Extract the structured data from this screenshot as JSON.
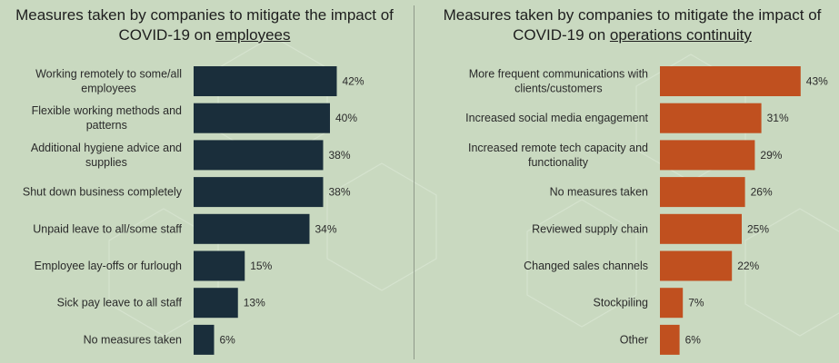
{
  "colors": {
    "background": "#c9d9c0",
    "left_bar": "#1a2e3b",
    "right_bar": "#c0501f",
    "text": "#2a2a2a"
  },
  "chart_data": [
    {
      "type": "bar",
      "orientation": "horizontal",
      "title": "Measures taken by companies to mitigate the impact of COVID-19 on employees",
      "title_line1": "Measures taken by companies to mitigate the impact of",
      "title_line2_prefix": "COVID-19 on ",
      "title_line2_underlined": "employees",
      "categories": [
        "Working remotely to some/all employees",
        "Flexible working methods and patterns",
        "Additional hygiene advice and supplies",
        "Shut down business completely",
        "Unpaid leave to all/some staff",
        "Employee lay-offs or furlough",
        "Sick pay leave to all staff",
        "No measures taken"
      ],
      "category_lines": [
        [
          "Working remotely to some/all",
          "employees"
        ],
        [
          "Flexible working methods and",
          "patterns"
        ],
        [
          "Additional hygiene advice and",
          "supplies"
        ],
        [
          "Shut down business completely"
        ],
        [
          "Unpaid leave to all/some staff"
        ],
        [
          "Employee lay-offs or furlough"
        ],
        [
          "Sick pay leave to all staff"
        ],
        [
          "No measures taken"
        ]
      ],
      "values": [
        42,
        40,
        38,
        38,
        34,
        15,
        13,
        6
      ],
      "value_labels": [
        "42%",
        "40%",
        "38%",
        "38%",
        "34%",
        "15%",
        "13%",
        "6%"
      ],
      "unit": "%",
      "xlim": [
        0,
        50
      ],
      "grid": false
    },
    {
      "type": "bar",
      "orientation": "horizontal",
      "title": "Measures taken by companies to mitigate the impact of COVID-19 on operations continuity",
      "title_line1": "Measures taken by companies to mitigate the impact of",
      "title_line2_prefix": "COVID-19 on ",
      "title_line2_underlined": "operations continuity",
      "categories": [
        "More frequent communications with clients/customers",
        "Increased social media engagement",
        "Increased remote tech capacity and functionality",
        "No measures taken",
        "Reviewed supply chain",
        "Changed sales channels",
        "Stockpiling",
        "Other"
      ],
      "category_lines": [
        [
          "More frequent communications with",
          "clients/customers"
        ],
        [
          "Increased social media engagement"
        ],
        [
          "Increased remote tech capacity and",
          "functionality"
        ],
        [
          "No measures taken"
        ],
        [
          "Reviewed supply chain"
        ],
        [
          "Changed sales channels"
        ],
        [
          "Stockpiling"
        ],
        [
          "Other"
        ]
      ],
      "values": [
        43,
        31,
        29,
        26,
        25,
        22,
        7,
        6
      ],
      "value_labels": [
        "43%",
        "31%",
        "29%",
        "26%",
        "25%",
        "22%",
        "7%",
        "6%"
      ],
      "unit": "%",
      "xlim": [
        0,
        50
      ],
      "grid": false
    }
  ]
}
